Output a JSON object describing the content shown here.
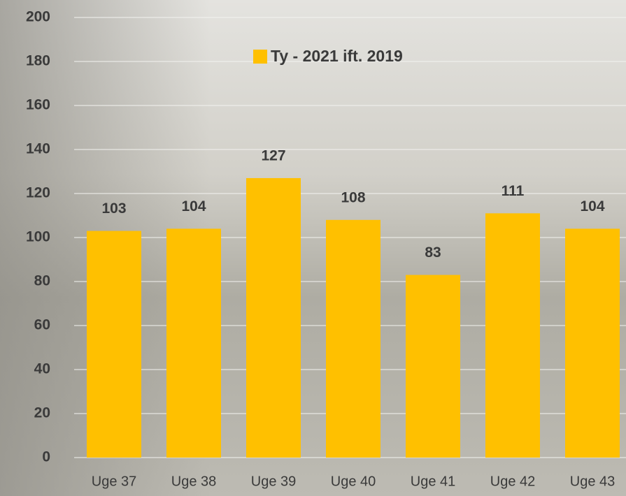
{
  "chart_data": {
    "type": "bar",
    "categories": [
      "Uge 37",
      "Uge 38",
      "Uge 39",
      "Uge 40",
      "Uge 41",
      "Uge 42",
      "Uge 43"
    ],
    "series": [
      {
        "name": "Ty - 2021 ift. 2019",
        "color": "#FFC000",
        "values": [
          103,
          104,
          127,
          108,
          83,
          111,
          104
        ]
      }
    ],
    "ylim": [
      0,
      200
    ],
    "yticks": [
      0,
      20,
      40,
      60,
      80,
      100,
      120,
      140,
      160,
      180,
      200
    ],
    "grid": true,
    "legend": "top"
  }
}
